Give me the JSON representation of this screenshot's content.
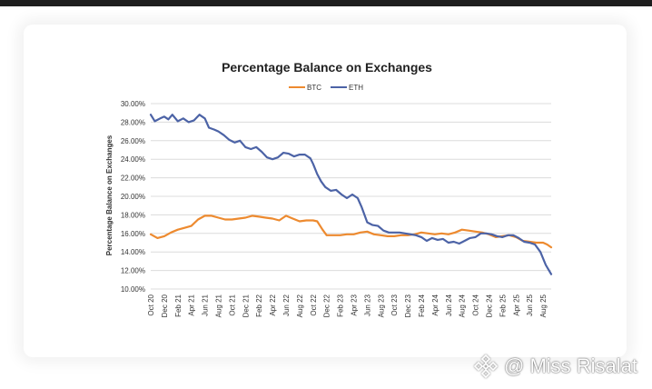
{
  "watermark": {
    "handle": "@ Miss Risalat",
    "icon": "diamond-logo-icon"
  },
  "chart_data": {
    "type": "line",
    "title": "Percentage Balance on Exchanges",
    "xlabel": "",
    "ylabel": "Percentage Balance on Exchanges",
    "ylim": [
      10,
      30
    ],
    "yticks": [
      "10.00%",
      "12.00%",
      "14.00%",
      "16.00%",
      "18.00%",
      "20.00%",
      "22.00%",
      "24.00%",
      "26.00%",
      "28.00%",
      "30.00%"
    ],
    "grid": true,
    "legend": "top-center",
    "categories": [
      "Oct 20",
      "Dec 20",
      "Feb 21",
      "Apr 21",
      "Jun 21",
      "Aug 21",
      "Oct 21",
      "Dec 21",
      "Feb 22",
      "Apr 22",
      "Jun 22",
      "Aug 22",
      "Oct 22",
      "Dec 22",
      "Feb 23",
      "Apr 23",
      "Jun 23",
      "Aug 23",
      "Oct 23",
      "Dec 23",
      "Feb 24",
      "Apr 24",
      "Jun 24",
      "Aug 24",
      "Oct 24",
      "Dec 24",
      "Feb 25",
      "Apr 25",
      "Jun 25",
      "Aug 25"
    ],
    "x_end": 29.6,
    "series": [
      {
        "name": "BTC",
        "color": "#ed8a2f",
        "points": [
          [
            0,
            15.9
          ],
          [
            0.5,
            15.5
          ],
          [
            1,
            15.7
          ],
          [
            1.5,
            16.1
          ],
          [
            2,
            16.4
          ],
          [
            2.5,
            16.6
          ],
          [
            3,
            16.8
          ],
          [
            3.5,
            17.5
          ],
          [
            4,
            17.9
          ],
          [
            4.5,
            17.9
          ],
          [
            5,
            17.7
          ],
          [
            5.5,
            17.5
          ],
          [
            6,
            17.5
          ],
          [
            6.5,
            17.6
          ],
          [
            7,
            17.7
          ],
          [
            7.5,
            17.9
          ],
          [
            8,
            17.8
          ],
          [
            8.5,
            17.7
          ],
          [
            9,
            17.6
          ],
          [
            9.5,
            17.4
          ],
          [
            10,
            17.9
          ],
          [
            10.5,
            17.6
          ],
          [
            11,
            17.3
          ],
          [
            11.5,
            17.4
          ],
          [
            12,
            17.4
          ],
          [
            12.3,
            17.3
          ],
          [
            12.7,
            16.4
          ],
          [
            13,
            15.8
          ],
          [
            13.5,
            15.8
          ],
          [
            14,
            15.8
          ],
          [
            14.5,
            15.9
          ],
          [
            15,
            15.9
          ],
          [
            15.5,
            16.1
          ],
          [
            16,
            16.2
          ],
          [
            16.5,
            15.9
          ],
          [
            17,
            15.8
          ],
          [
            17.5,
            15.7
          ],
          [
            18,
            15.7
          ],
          [
            18.5,
            15.8
          ],
          [
            19,
            15.8
          ],
          [
            19.5,
            15.9
          ],
          [
            20,
            16.1
          ],
          [
            20.5,
            16.0
          ],
          [
            21,
            15.9
          ],
          [
            21.5,
            16.0
          ],
          [
            22,
            15.9
          ],
          [
            22.5,
            16.1
          ],
          [
            23,
            16.4
          ],
          [
            23.5,
            16.3
          ],
          [
            24,
            16.2
          ],
          [
            24.5,
            16.1
          ],
          [
            25,
            15.9
          ],
          [
            25.5,
            15.6
          ],
          [
            26,
            15.7
          ],
          [
            26.5,
            15.8
          ],
          [
            27,
            15.6
          ],
          [
            27.5,
            15.2
          ],
          [
            28,
            15.1
          ],
          [
            28.5,
            15.0
          ],
          [
            29,
            15.0
          ],
          [
            29.3,
            14.8
          ],
          [
            29.6,
            14.5
          ]
        ]
      },
      {
        "name": "ETH",
        "color": "#4c63a6",
        "points": [
          [
            0,
            28.8
          ],
          [
            0.3,
            28.1
          ],
          [
            0.7,
            28.4
          ],
          [
            1,
            28.6
          ],
          [
            1.3,
            28.3
          ],
          [
            1.6,
            28.8
          ],
          [
            2,
            28.1
          ],
          [
            2.4,
            28.4
          ],
          [
            2.8,
            28.0
          ],
          [
            3.2,
            28.2
          ],
          [
            3.6,
            28.8
          ],
          [
            4,
            28.4
          ],
          [
            4.3,
            27.4
          ],
          [
            4.7,
            27.2
          ],
          [
            5,
            27.0
          ],
          [
            5.4,
            26.6
          ],
          [
            5.8,
            26.1
          ],
          [
            6.2,
            25.8
          ],
          [
            6.6,
            26.0
          ],
          [
            7,
            25.3
          ],
          [
            7.4,
            25.1
          ],
          [
            7.8,
            25.3
          ],
          [
            8.2,
            24.8
          ],
          [
            8.6,
            24.2
          ],
          [
            9,
            24.0
          ],
          [
            9.4,
            24.2
          ],
          [
            9.8,
            24.7
          ],
          [
            10.2,
            24.6
          ],
          [
            10.6,
            24.3
          ],
          [
            11,
            24.5
          ],
          [
            11.4,
            24.5
          ],
          [
            11.8,
            24.1
          ],
          [
            12,
            23.5
          ],
          [
            12.3,
            22.4
          ],
          [
            12.6,
            21.6
          ],
          [
            12.9,
            21.0
          ],
          [
            13.3,
            20.6
          ],
          [
            13.7,
            20.7
          ],
          [
            14.1,
            20.2
          ],
          [
            14.5,
            19.8
          ],
          [
            14.9,
            20.2
          ],
          [
            15.3,
            19.8
          ],
          [
            15.6,
            18.8
          ],
          [
            16,
            17.2
          ],
          [
            16.4,
            16.9
          ],
          [
            16.8,
            16.8
          ],
          [
            17.2,
            16.3
          ],
          [
            17.6,
            16.1
          ],
          [
            18,
            16.1
          ],
          [
            18.4,
            16.1
          ],
          [
            18.8,
            16.0
          ],
          [
            19.2,
            15.9
          ],
          [
            19.6,
            15.8
          ],
          [
            20,
            15.6
          ],
          [
            20.4,
            15.2
          ],
          [
            20.8,
            15.5
          ],
          [
            21.2,
            15.3
          ],
          [
            21.6,
            15.4
          ],
          [
            22,
            15.0
          ],
          [
            22.4,
            15.1
          ],
          [
            22.8,
            14.9
          ],
          [
            23.2,
            15.2
          ],
          [
            23.6,
            15.5
          ],
          [
            24,
            15.6
          ],
          [
            24.4,
            16.0
          ],
          [
            24.8,
            16.0
          ],
          [
            25.2,
            15.9
          ],
          [
            25.6,
            15.7
          ],
          [
            26,
            15.6
          ],
          [
            26.4,
            15.8
          ],
          [
            26.8,
            15.8
          ],
          [
            27.2,
            15.5
          ],
          [
            27.6,
            15.1
          ],
          [
            28,
            15.0
          ],
          [
            28.4,
            14.8
          ],
          [
            28.8,
            14.0
          ],
          [
            29.2,
            12.6
          ],
          [
            29.6,
            11.6
          ]
        ]
      }
    ]
  }
}
